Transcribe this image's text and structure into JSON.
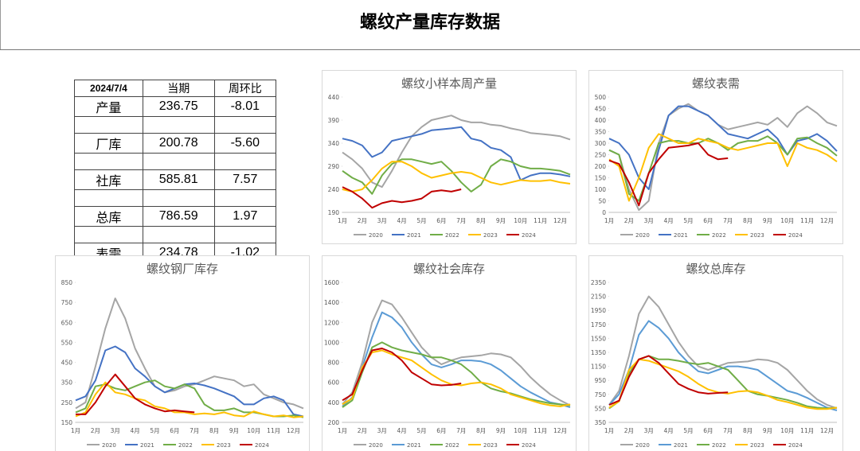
{
  "header": {
    "title": "螺纹产量库存数据"
  },
  "table": {
    "header": [
      "2024/7/4",
      "当期",
      "周环比"
    ],
    "rows": [
      [
        "产量",
        "236.75",
        "-8.01"
      ],
      [
        "厂库",
        "200.78",
        "-5.60"
      ],
      [
        "社库",
        "585.81",
        "7.57"
      ],
      [
        "总库",
        "786.59",
        "1.97"
      ],
      [
        "表需",
        "234.78",
        "-1.02"
      ]
    ]
  },
  "chart_data": [
    {
      "type": "line",
      "title": "螺纹小样本周产量",
      "categories": [
        "1月",
        null,
        "2月",
        null,
        "3月",
        null,
        "4月",
        null,
        "5月",
        null,
        "6月",
        null,
        "7月",
        null,
        "8月",
        null,
        "9月",
        null,
        "10月",
        null,
        "11月",
        null,
        "12月",
        null
      ],
      "ylim": [
        190,
        440
      ],
      "yticks": [
        190,
        240,
        290,
        340,
        390,
        440
      ],
      "series": [
        {
          "name": "2020",
          "color": "#a5a5a5",
          "values": [
            320,
            305,
            285,
            255,
            245,
            280,
            320,
            355,
            375,
            390,
            395,
            400,
            390,
            385,
            385,
            380,
            378,
            372,
            368,
            362,
            360,
            358,
            355,
            348
          ]
        },
        {
          "name": "2021",
          "color": "#4472c4",
          "values": [
            350,
            345,
            335,
            310,
            320,
            345,
            350,
            355,
            360,
            368,
            370,
            372,
            375,
            350,
            345,
            330,
            325,
            310,
            260,
            270,
            275,
            275,
            272,
            268
          ]
        },
        {
          "name": "2022",
          "color": "#70ad47",
          "values": [
            280,
            265,
            255,
            230,
            270,
            295,
            305,
            305,
            300,
            295,
            300,
            280,
            255,
            235,
            250,
            290,
            305,
            300,
            290,
            285,
            285,
            283,
            280,
            272
          ]
        },
        {
          "name": "2023",
          "color": "#ffc000",
          "values": [
            240,
            235,
            240,
            260,
            285,
            300,
            300,
            290,
            275,
            265,
            270,
            275,
            278,
            275,
            265,
            255,
            250,
            255,
            260,
            258,
            258,
            260,
            255,
            252
          ]
        },
        {
          "name": "2024",
          "color": "#c00000",
          "values": [
            245,
            235,
            220,
            200,
            210,
            215,
            212,
            215,
            220,
            235,
            238,
            235,
            240,
            null,
            null,
            null,
            null,
            null,
            null,
            null,
            null,
            null,
            null,
            null
          ]
        }
      ]
    },
    {
      "type": "line",
      "title": "螺纹表需",
      "categories": [
        "1月",
        null,
        "2月",
        null,
        "3月",
        null,
        "4月",
        null,
        "5月",
        null,
        "6月",
        null,
        "7月",
        null,
        "8月",
        null,
        "9月",
        null,
        "10月",
        null,
        "11月",
        null,
        "12月",
        null
      ],
      "ylim": [
        0,
        500
      ],
      "yticks": [
        0,
        50,
        100,
        150,
        200,
        250,
        300,
        350,
        400,
        450,
        500
      ],
      "series": [
        {
          "name": "2020",
          "color": "#a5a5a5",
          "values": [
            270,
            250,
            100,
            10,
            50,
            300,
            420,
            450,
            470,
            440,
            420,
            380,
            360,
            370,
            380,
            390,
            380,
            410,
            370,
            430,
            460,
            430,
            390,
            375
          ]
        },
        {
          "name": "2021",
          "color": "#4472c4",
          "values": [
            320,
            300,
            250,
            150,
            100,
            270,
            420,
            460,
            460,
            440,
            420,
            380,
            340,
            330,
            320,
            340,
            360,
            320,
            250,
            310,
            320,
            340,
            310,
            265
          ]
        },
        {
          "name": "2022",
          "color": "#70ad47",
          "values": [
            270,
            250,
            80,
            50,
            170,
            300,
            310,
            310,
            300,
            300,
            320,
            300,
            270,
            300,
            310,
            310,
            330,
            300,
            250,
            320,
            325,
            300,
            280,
            245
          ]
        },
        {
          "name": "2023",
          "color": "#ffc000",
          "values": [
            230,
            200,
            50,
            150,
            280,
            340,
            320,
            300,
            300,
            320,
            310,
            300,
            280,
            270,
            280,
            290,
            300,
            300,
            200,
            300,
            280,
            270,
            250,
            220
          ]
        },
        {
          "name": "2024",
          "color": "#c00000",
          "values": [
            225,
            210,
            130,
            30,
            170,
            230,
            280,
            285,
            290,
            300,
            250,
            230,
            235,
            null,
            null,
            null,
            null,
            null,
            null,
            null,
            null,
            null,
            null,
            null
          ]
        }
      ]
    },
    {
      "type": "line",
      "title": "螺纹钢厂库存",
      "categories": [
        "1月",
        null,
        "2月",
        null,
        "3月",
        null,
        "4月",
        null,
        "5月",
        null,
        "6月",
        null,
        "7月",
        null,
        "8月",
        null,
        "9月",
        null,
        "10月",
        null,
        "11月",
        null,
        "12月",
        null
      ],
      "ylim": [
        150,
        850
      ],
      "yticks": [
        150,
        250,
        350,
        450,
        550,
        650,
        750,
        850
      ],
      "series": [
        {
          "name": "2020",
          "color": "#a5a5a5",
          "values": [
            220,
            250,
            430,
            620,
            770,
            670,
            520,
            420,
            330,
            300,
            310,
            330,
            340,
            360,
            380,
            370,
            360,
            330,
            340,
            290,
            270,
            250,
            240,
            220
          ]
        },
        {
          "name": "2021",
          "color": "#4472c4",
          "values": [
            260,
            280,
            360,
            510,
            530,
            500,
            420,
            380,
            330,
            300,
            320,
            340,
            345,
            335,
            320,
            300,
            280,
            240,
            240,
            270,
            280,
            260,
            190,
            180
          ]
        },
        {
          "name": "2022",
          "color": "#70ad47",
          "values": [
            200,
            220,
            330,
            340,
            320,
            310,
            330,
            350,
            360,
            330,
            320,
            340,
            320,
            240,
            210,
            210,
            220,
            200,
            200,
            190,
            180,
            180,
            185,
            175
          ]
        },
        {
          "name": "2023",
          "color": "#ffc000",
          "values": [
            180,
            200,
            290,
            350,
            300,
            290,
            270,
            260,
            230,
            220,
            200,
            200,
            190,
            195,
            190,
            200,
            185,
            180,
            205,
            190,
            180,
            185,
            175,
            180
          ]
        },
        {
          "name": "2024",
          "color": "#c00000",
          "values": [
            190,
            190,
            250,
            330,
            390,
            330,
            270,
            240,
            220,
            205,
            210,
            205,
            200,
            null,
            null,
            null,
            null,
            null,
            null,
            null,
            null,
            null,
            null,
            null
          ]
        }
      ]
    },
    {
      "type": "line",
      "title": "螺纹社会库存",
      "categories": [
        "1月",
        null,
        "2月",
        null,
        "3月",
        null,
        "4月",
        null,
        "5月",
        null,
        "6月",
        null,
        "7月",
        null,
        "8月",
        null,
        "9月",
        null,
        "10月",
        null,
        "11月",
        null,
        "12月",
        null
      ],
      "ylim": [
        200,
        1600
      ],
      "yticks": [
        200,
        400,
        600,
        800,
        1000,
        1200,
        1400,
        1600
      ],
      "series": [
        {
          "name": "2020",
          "color": "#a5a5a5",
          "values": [
            380,
            500,
            800,
            1200,
            1420,
            1380,
            1250,
            1100,
            950,
            850,
            780,
            820,
            850,
            860,
            870,
            890,
            880,
            850,
            760,
            650,
            560,
            480,
            420,
            370
          ]
        },
        {
          "name": "2021",
          "color": "#5b9bd5",
          "values": [
            360,
            450,
            750,
            1050,
            1300,
            1250,
            1150,
            1000,
            880,
            780,
            750,
            780,
            820,
            820,
            810,
            780,
            720,
            640,
            560,
            500,
            450,
            400,
            380,
            350
          ]
        },
        {
          "name": "2022",
          "color": "#70ad47",
          "values": [
            350,
            420,
            700,
            950,
            1000,
            950,
            920,
            900,
            880,
            850,
            850,
            820,
            780,
            700,
            600,
            540,
            510,
            490,
            460,
            430,
            410,
            390,
            380,
            370
          ]
        },
        {
          "name": "2023",
          "color": "#ffc000",
          "values": [
            380,
            440,
            750,
            900,
            920,
            880,
            850,
            820,
            750,
            680,
            620,
            580,
            570,
            590,
            600,
            580,
            540,
            480,
            450,
            420,
            390,
            370,
            360,
            380
          ]
        },
        {
          "name": "2024",
          "color": "#c00000",
          "values": [
            420,
            480,
            720,
            920,
            940,
            900,
            820,
            700,
            640,
            580,
            570,
            575,
            590,
            null,
            null,
            null,
            null,
            null,
            null,
            null,
            null,
            null,
            null,
            null
          ]
        }
      ]
    },
    {
      "type": "line",
      "title": "螺纹总库存",
      "categories": [
        "1月",
        null,
        "2月",
        null,
        "3月",
        null,
        "4月",
        null,
        "5月",
        null,
        "6月",
        null,
        "7月",
        null,
        "8月",
        null,
        "9月",
        null,
        "10月",
        null,
        "11月",
        null,
        "12月",
        null
      ],
      "ylim": [
        350,
        2350
      ],
      "yticks": [
        350,
        550,
        750,
        950,
        1150,
        1350,
        1550,
        1750,
        1950,
        2150,
        2350
      ],
      "series": [
        {
          "name": "2020",
          "color": "#a5a5a5",
          "values": [
            600,
            800,
            1300,
            1900,
            2150,
            2000,
            1750,
            1500,
            1300,
            1150,
            1100,
            1150,
            1200,
            1210,
            1220,
            1250,
            1240,
            1200,
            1100,
            950,
            800,
            680,
            600,
            550
          ]
        },
        {
          "name": "2021",
          "color": "#5b9bd5",
          "values": [
            600,
            750,
            1100,
            1600,
            1800,
            1700,
            1550,
            1350,
            1200,
            1080,
            1050,
            1100,
            1150,
            1150,
            1130,
            1100,
            1000,
            900,
            800,
            760,
            700,
            630,
            560,
            520
          ]
        },
        {
          "name": "2022",
          "color": "#70ad47",
          "values": [
            550,
            650,
            1050,
            1250,
            1300,
            1250,
            1250,
            1230,
            1200,
            1180,
            1200,
            1150,
            1100,
            950,
            800,
            750,
            730,
            700,
            670,
            630,
            580,
            560,
            550,
            560
          ]
        },
        {
          "name": "2023",
          "color": "#ffc000",
          "values": [
            560,
            650,
            1100,
            1250,
            1230,
            1180,
            1130,
            1080,
            1000,
            900,
            820,
            780,
            760,
            790,
            800,
            780,
            730,
            670,
            640,
            600,
            560,
            540,
            540,
            560
          ]
        },
        {
          "name": "2024",
          "color": "#c00000",
          "values": [
            600,
            660,
            1000,
            1250,
            1300,
            1200,
            1050,
            900,
            830,
            780,
            760,
            770,
            780,
            null,
            null,
            null,
            null,
            null,
            null,
            null,
            null,
            null,
            null,
            null
          ]
        }
      ]
    }
  ]
}
